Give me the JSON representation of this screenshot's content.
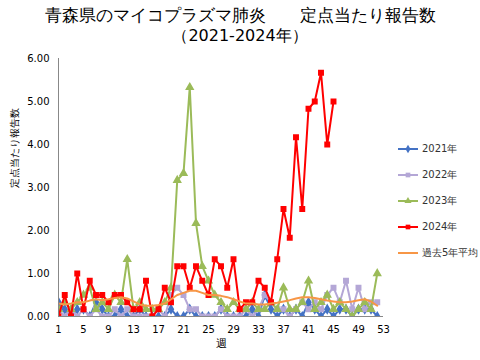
{
  "chart_data": {
    "type": "line",
    "title": "青森県のマイコプラズマ肺炎　　定点当たり報告数",
    "subtitle": "（2021-2024年）",
    "x_label": "週",
    "y_label": "定点当たり報告数",
    "x": [
      1,
      2,
      3,
      4,
      5,
      6,
      7,
      8,
      9,
      10,
      11,
      12,
      13,
      14,
      15,
      16,
      17,
      18,
      19,
      20,
      21,
      22,
      23,
      24,
      25,
      26,
      27,
      28,
      29,
      30,
      31,
      32,
      33,
      34,
      35,
      36,
      37,
      38,
      39,
      40,
      41,
      42,
      43,
      44,
      45,
      46,
      47,
      48,
      49,
      50,
      51,
      52
    ],
    "series": [
      {
        "name": "2021年",
        "color": "#4472c4",
        "marker": "diamond",
        "line_style": "solid",
        "values": [
          0.33,
          0.17,
          0.0,
          0.17,
          0.17,
          0.0,
          0.33,
          0.17,
          0.0,
          0.0,
          0.17,
          0.0,
          0.0,
          0.17,
          0.0,
          0.0,
          0.0,
          0.0,
          0.17,
          0.0,
          0.0,
          0.17,
          0.0,
          0.0,
          0.0,
          0.0,
          0.17,
          0.0,
          0.0,
          0.0,
          0.0,
          0.17,
          0.0,
          0.5,
          0.17,
          0.0,
          0.17,
          0.0,
          0.17,
          0.0,
          0.33,
          0.17,
          0.0,
          0.17,
          0.0,
          0.17,
          0.17,
          0.0,
          0.17,
          0.17,
          0.17,
          0.0
        ]
      },
      {
        "name": "2022年",
        "color": "#b4a7d6",
        "marker": "square",
        "line_style": "solid",
        "values": [
          0.17,
          0.0,
          0.17,
          0.0,
          0.17,
          0.0,
          0.17,
          0.0,
          0.0,
          0.17,
          0.0,
          0.17,
          0.0,
          0.0,
          0.0,
          0.0,
          0.17,
          0.0,
          0.5,
          0.67,
          0.5,
          0.17,
          0.17,
          0.0,
          0.0,
          0.0,
          0.17,
          0.0,
          0.0,
          0.0,
          0.17,
          0.0,
          0.17,
          0.5,
          0.33,
          0.17,
          0.17,
          0.0,
          0.17,
          0.33,
          0.17,
          0.33,
          0.17,
          0.5,
          0.67,
          0.33,
          0.83,
          0.17,
          0.67,
          0.17,
          0.33,
          0.33
        ]
      },
      {
        "name": "2023年",
        "color": "#9bbb59",
        "marker": "triangle",
        "line_style": "solid",
        "values": [
          0.17,
          0.33,
          0.17,
          0.33,
          0.5,
          0.67,
          0.17,
          0.33,
          0.17,
          0.5,
          0.33,
          1.33,
          0.17,
          0.33,
          0.17,
          0.17,
          0.17,
          0.33,
          0.67,
          3.17,
          3.33,
          5.33,
          2.17,
          1.17,
          0.83,
          0.5,
          0.33,
          0.17,
          0.33,
          0.17,
          0.17,
          0.33,
          0.17,
          0.17,
          0.33,
          0.17,
          0.67,
          0.17,
          0.17,
          0.33,
          0.83,
          0.17,
          0.33,
          0.5,
          0.17,
          0.33,
          0.17,
          0.0,
          0.17,
          0.33,
          0.17,
          1.0
        ]
      },
      {
        "name": "2024年",
        "color": "#ff0000",
        "marker": "square",
        "line_style": "solid",
        "values": [
          0.0,
          0.5,
          0.0,
          1.0,
          0.17,
          0.83,
          0.5,
          0.5,
          0.33,
          0.5,
          0.5,
          0.33,
          0.17,
          0.17,
          0.83,
          0.0,
          0.17,
          0.67,
          0.33,
          1.17,
          1.17,
          0.67,
          1.17,
          0.83,
          0.5,
          1.33,
          1.17,
          0.67,
          1.33,
          0.17,
          0.33,
          0.33,
          0.83,
          0.67,
          0.33,
          1.33,
          2.5,
          1.83,
          4.17,
          2.5,
          4.83,
          5.0,
          5.67,
          4.0,
          5.0,
          null,
          null,
          null,
          null,
          null,
          null,
          null
        ]
      },
      {
        "name": "過去5年平均",
        "color": "#f79646",
        "marker": "none",
        "line_style": "solid",
        "values": [
          0.3,
          0.28,
          0.3,
          0.33,
          0.33,
          0.37,
          0.4,
          0.38,
          0.4,
          0.43,
          0.45,
          0.42,
          0.35,
          0.28,
          0.25,
          0.25,
          0.27,
          0.3,
          0.4,
          0.5,
          0.55,
          0.6,
          0.6,
          0.55,
          0.5,
          0.5,
          0.48,
          0.45,
          0.4,
          0.35,
          0.3,
          0.3,
          0.28,
          0.28,
          0.3,
          0.32,
          0.35,
          0.38,
          0.42,
          0.45,
          0.45,
          0.43,
          0.4,
          0.37,
          0.35,
          0.33,
          0.33,
          0.35,
          0.38,
          0.4,
          0.35,
          0.25
        ]
      }
    ],
    "xlim": [
      1,
      53
    ],
    "xticks": [
      1,
      5,
      9,
      13,
      17,
      21,
      25,
      29,
      33,
      37,
      41,
      45,
      49,
      53
    ],
    "ylim": [
      0,
      6
    ],
    "yticks": [
      {
        "value": 0,
        "label": "0.00"
      },
      {
        "value": 1,
        "label": "1.00"
      },
      {
        "value": 2,
        "label": "2.00"
      },
      {
        "value": 3,
        "label": "3.00"
      },
      {
        "value": 4,
        "label": "4.00"
      },
      {
        "value": 5,
        "label": "5.00"
      },
      {
        "value": 6,
        "label": "6.00"
      }
    ],
    "grid": false,
    "legend": "right"
  }
}
